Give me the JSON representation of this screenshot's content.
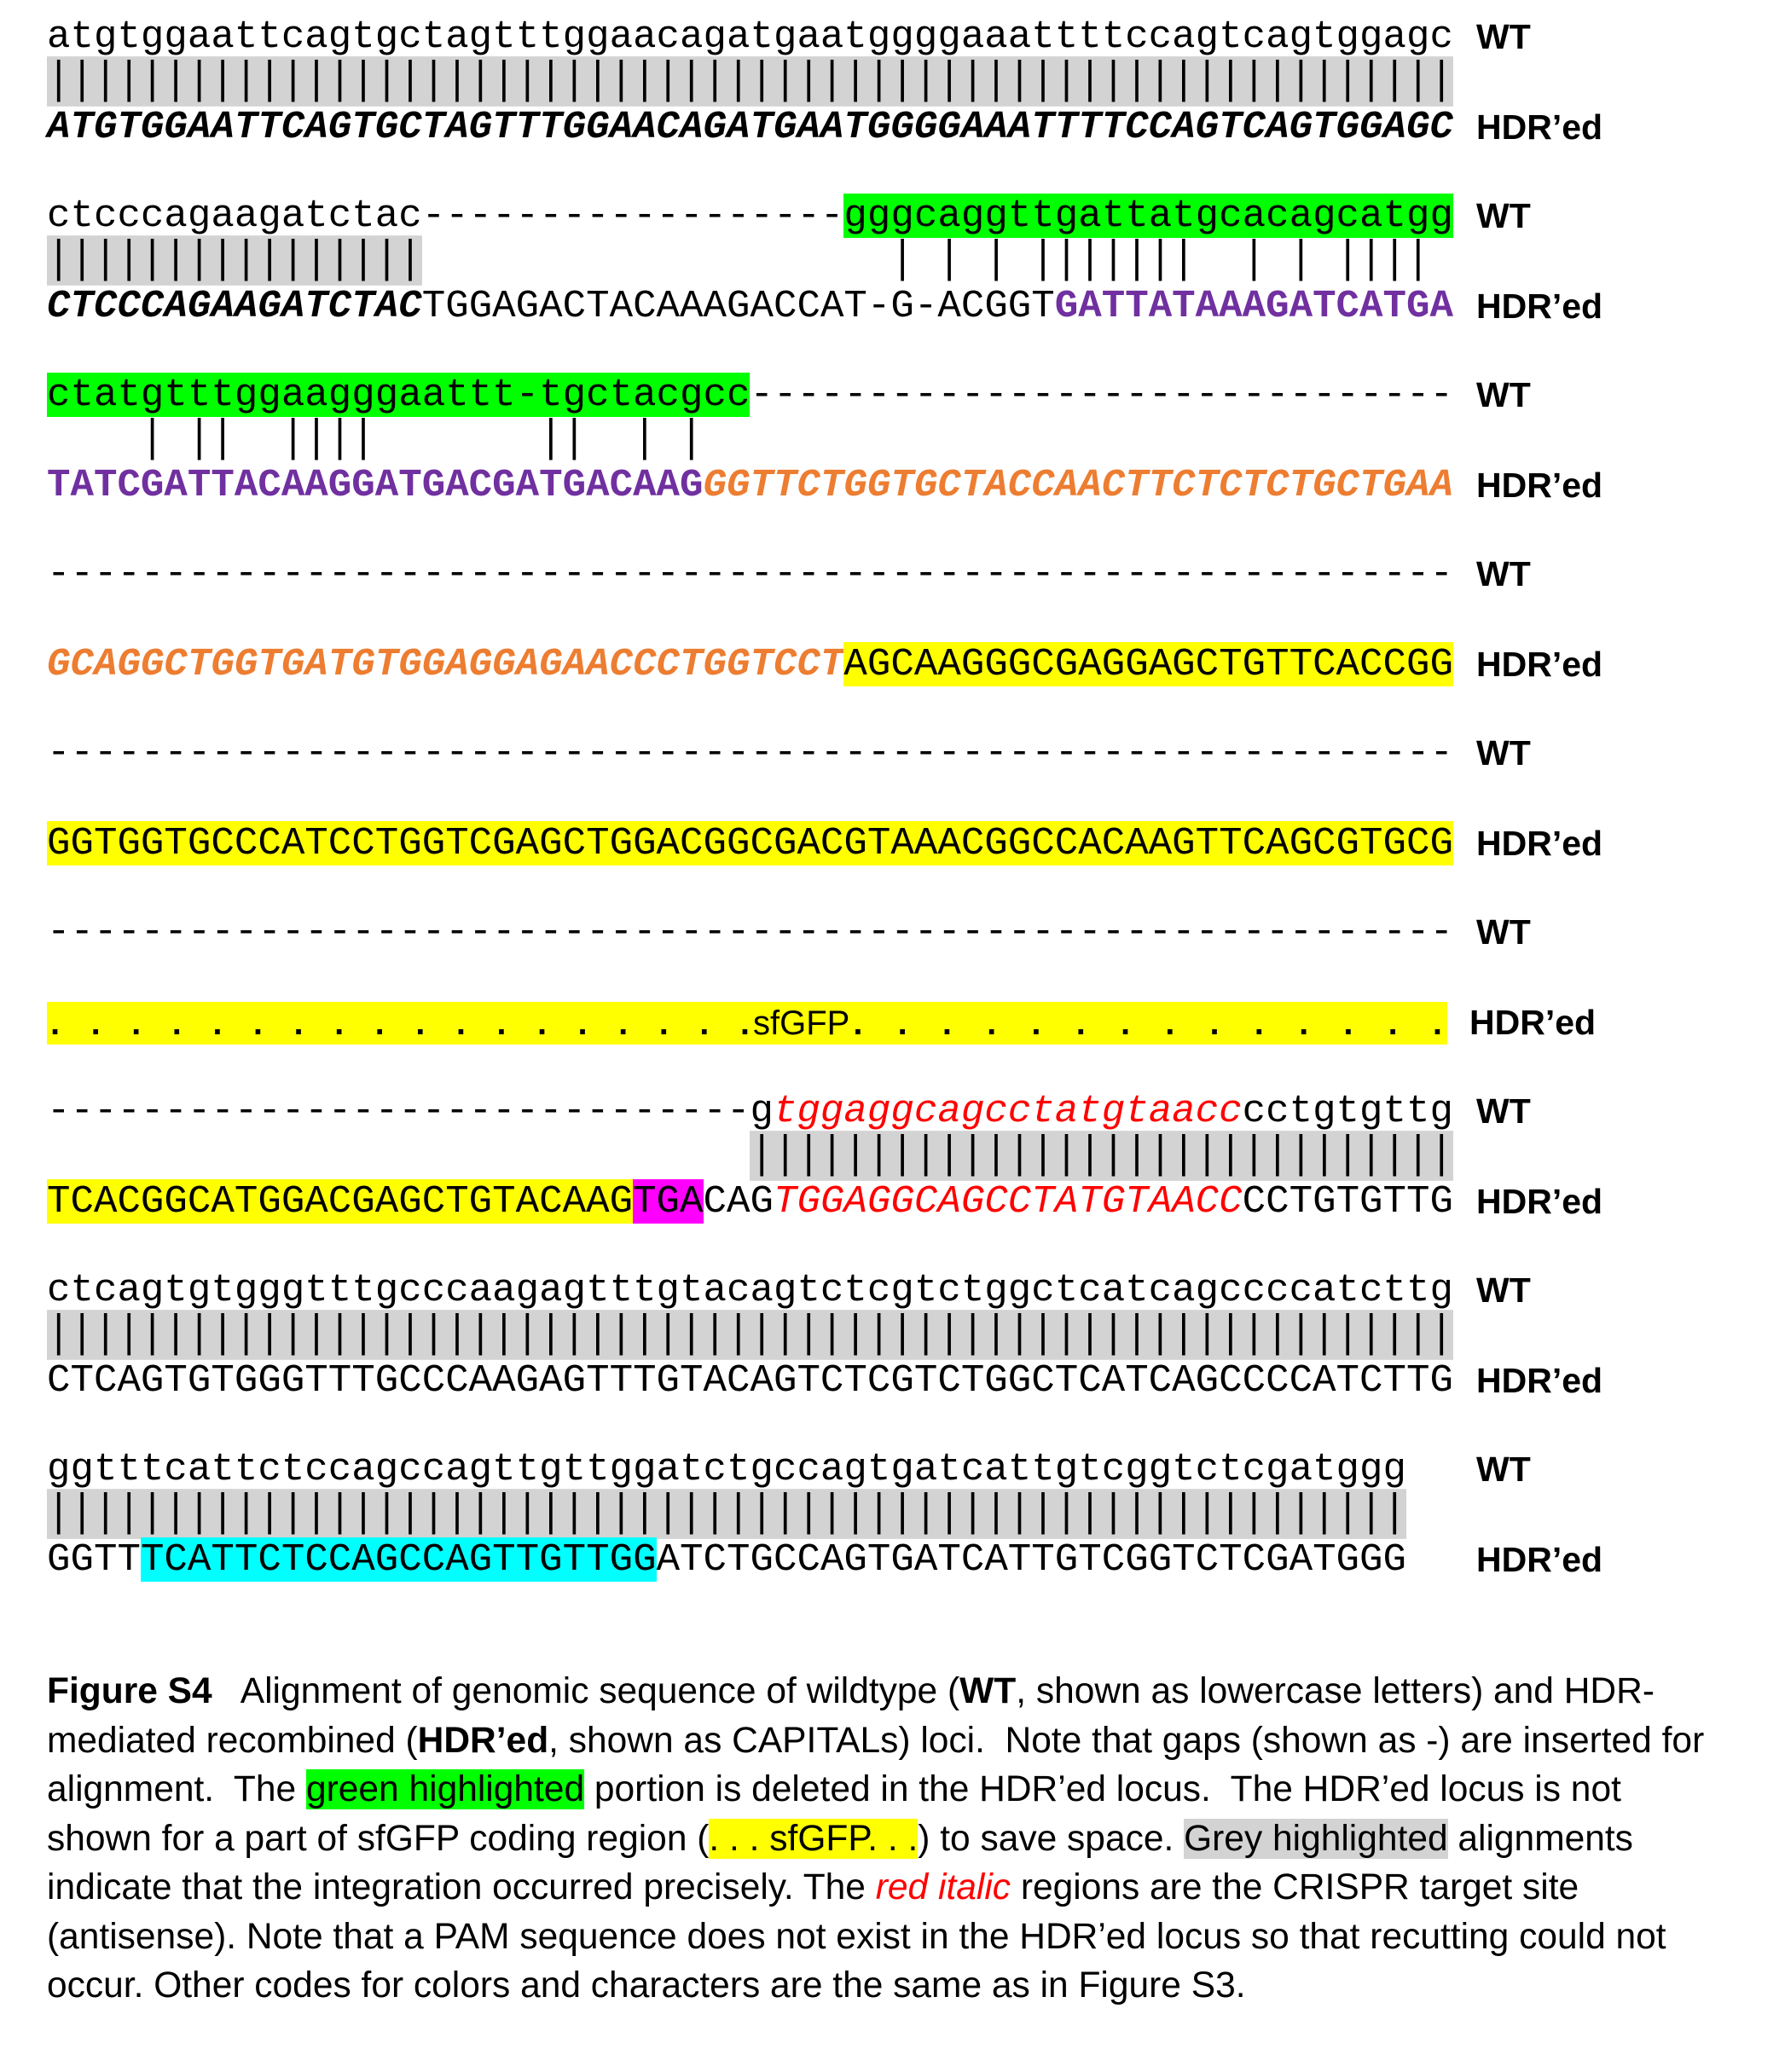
{
  "colors": {
    "green": "#00ff00",
    "yellow": "#ffff00",
    "magenta": "#ff00ff",
    "cyan": "#00ffff",
    "grey": "#d3d3d3",
    "purple": "#7030a0",
    "orange": "#ed7d31",
    "red": "#ff0000"
  },
  "labels": {
    "wt": "WT",
    "hdr": "HDR’ed"
  },
  "blocks": [
    {
      "wt": [
        {
          "t": "atgtggaattcagtgctagtttggaacagatgaatggggaaattttccagtcagtggagc"
        }
      ],
      "match": [
        {
          "t": "||||||||||||||||||||||||||||||||||||||||||||||||||||||||||||",
          "hl": "grey"
        }
      ],
      "hdr": [
        {
          "t": "ATGTGGAATTCAGTGCTAGTTTGGAACAGATGAATGGGGAAATTTTCCAGTCAGTGGAGC",
          "s": "bi"
        }
      ]
    },
    {
      "wt": [
        {
          "t": "ctcccagaagatctac------------------"
        },
        {
          "t": "gggcaggttgattatgcacagcatgg",
          "hl": "green"
        }
      ],
      "match": [
        {
          "t": "||||||||||||||||",
          "hl": "grey"
        },
        {
          "t": "                    | | | |||||||  | | |||| "
        }
      ],
      "hdr": [
        {
          "t": "CTCCCAGAAGATCTAC",
          "s": "bi"
        },
        {
          "t": "TGGAGACTACAAAGACCAT-G-ACGGT"
        },
        {
          "t": "GATTATAAAGATCATGA",
          "s": "purple"
        }
      ]
    },
    {
      "wt": [
        {
          "t": "ctatgtttggaagggaattt-tgctacgcc",
          "hl": "green"
        },
        {
          "t": "------------------------------"
        }
      ],
      "match": [
        {
          "t": "    | ||  ||||       ||  | |"
        }
      ],
      "hdr": [
        {
          "t": "TATCGATTACAAGGATGACGATGACAAG",
          "s": "purple"
        },
        {
          "t": "GGTTCTGGTGCTACCAACTTCTCTCTGCTGAA",
          "s": "orange"
        }
      ]
    },
    {
      "wt": [
        {
          "t": "------------------------------------------------------------"
        }
      ],
      "match": [],
      "hdr": [
        {
          "t": "GCAGGCTGGTGATGTGGAGGAGAACCCTGGTCCT",
          "s": "orange"
        },
        {
          "t": "AGCAAGGGCGAGGAGCTGTTCACCGG",
          "hl": "yellow"
        }
      ]
    },
    {
      "wt": [
        {
          "t": "------------------------------------------------------------"
        }
      ],
      "match": [],
      "hdr": [
        {
          "t": "GGTGGTGCCCATCCTGGTCGAGCTGGACGGCGACGTAAACGGCCACAAGTTCAGCGTGCG",
          "hl": "yellow"
        }
      ]
    },
    {
      "wt": [
        {
          "t": "------------------------------------------------------------"
        }
      ],
      "match": [],
      "sfgfp": {
        "left": ". . . . . . . . . . . . . . . . . .",
        "name": "sfGFP",
        "right": ". . . . . . . . . . . . . ."
      }
    },
    {
      "wt": [
        {
          "t": "------------------------------g"
        },
        {
          "t": "tggaggcagcctatgtaacc",
          "s": "red"
        },
        {
          "t": "cctgtgttg"
        }
      ],
      "match": [
        {
          "t": "                              "
        },
        {
          "t": "||||||||||||||||||||||||||||||",
          "hl": "grey"
        }
      ],
      "hdr": [
        {
          "t": "TCACGGCATGGACGAGCTGTACAAG",
          "hl": "yellow"
        },
        {
          "t": "TGA",
          "hl": "magenta"
        },
        {
          "t": "CAG"
        },
        {
          "t": "TGGAGGCAGCCTATGTAACC",
          "s": "red"
        },
        {
          "t": "CCTGTGTTG"
        }
      ]
    },
    {
      "wt": [
        {
          "t": "ctcagtgtgggtttgcccaagagtttgtacagtctcgtctggctcatcagccccatcttg"
        }
      ],
      "match": [
        {
          "t": "||||||||||||||||||||||||||||||||||||||||||||||||||||||||||||",
          "hl": "grey"
        }
      ],
      "hdr": [
        {
          "t": "CTCAGTGTGGGTTTGCCCAAGAGTTTGTACAGTCTCGTCTGGCTCATCAGCCCCATCTTG"
        }
      ]
    },
    {
      "wt": [
        {
          "t": "ggtttcattctccagccagttgttggatctgccagtgatcattgtcggtctcgatggg"
        }
      ],
      "match": [
        {
          "t": "||||||||||||||||||||||||||||||||||||||||||||||||||||||||||",
          "hl": "grey"
        }
      ],
      "hdr": [
        {
          "t": "GGTT"
        },
        {
          "t": "TCATTCTCCAGCCAGTTGTTGG",
          "hl": "cyan"
        },
        {
          "t": "ATCTGCCAGTGATCATTGTCGGTCTCGATGGG"
        }
      ]
    }
  ],
  "caption": [
    {
      "t": "Figure S4",
      "s": "b"
    },
    {
      "t": "   Alignment of genomic sequence of wildtype ("
    },
    {
      "t": "WT",
      "s": "b"
    },
    {
      "t": ", shown as lowercase letters) and HDR-mediated recombined ("
    },
    {
      "t": "HDR’ed",
      "s": "b"
    },
    {
      "t": ", shown as CAPITALs) loci.  Note that gaps (shown as -) are inserted for alignment.  The "
    },
    {
      "t": "green highlighted",
      "hl": "green"
    },
    {
      "t": " portion is deleted in the HDR’ed locus.  The HDR’ed locus is not shown for a part of sfGFP coding region ("
    },
    {
      "t": ". . . sfGFP. . .",
      "hl": "yellow"
    },
    {
      "t": ") to save space. "
    },
    {
      "t": "Grey highlighted",
      "hl": "grey"
    },
    {
      "t": " alignments indicate that the integration occurred precisely. The "
    },
    {
      "t": "red italic",
      "s": "red"
    },
    {
      "t": " regions are the CRISPR target site (antisense). Note that a PAM sequence does not exist in the HDR’ed locus so that recutting could not occur. Other codes for colors and characters are the same as in Figure S3."
    }
  ]
}
